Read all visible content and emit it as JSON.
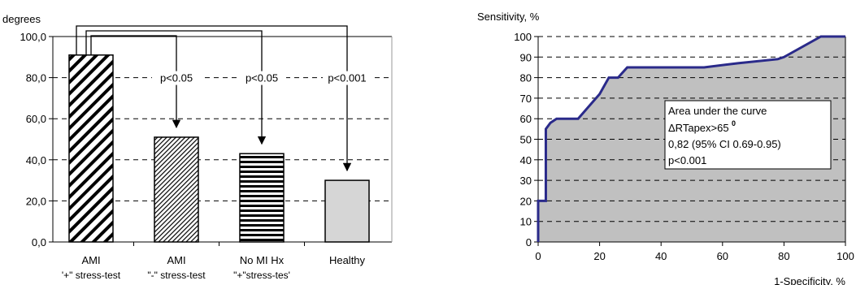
{
  "chart_data": [
    {
      "type": "bar",
      "ylabel": "degrees",
      "ylim": [
        0,
        100
      ],
      "yticks": [
        "0,0",
        "20,0",
        "40,0",
        "60,0",
        "80,0",
        "100,0"
      ],
      "yticks_values": [
        0,
        20,
        40,
        60,
        80,
        100
      ],
      "categories": [
        {
          "line1": "AMI",
          "line2": "'+\" stress-test"
        },
        {
          "line1": "AMI",
          "line2": "\"-\" stress-test"
        },
        {
          "line1": "No MI Hx",
          "line2": "\"+\"stress-tes'"
        },
        {
          "line1": "Healthy",
          "line2": ""
        }
      ],
      "values": [
        91,
        51,
        43,
        30
      ],
      "patterns": [
        "wide-diagonal",
        "fine-diagonal",
        "horizontal",
        "solid-gray"
      ],
      "annotations": [
        "p<0.05",
        "p<0.05",
        "p<0.001"
      ],
      "grid": "dashed horizontal"
    },
    {
      "type": "area",
      "ylabel": "Sensitivity, %",
      "xlabel": "1-Specificity, %",
      "xlim": [
        0,
        100
      ],
      "ylim": [
        0,
        100
      ],
      "xticks": [
        "0",
        "20",
        "40",
        "60",
        "80",
        "100"
      ],
      "yticks": [
        "0",
        "10",
        "20",
        "30",
        "40",
        "50",
        "60",
        "70",
        "80",
        "90",
        "100"
      ],
      "points": [
        [
          0,
          0
        ],
        [
          0,
          20
        ],
        [
          2.5,
          20
        ],
        [
          2.5,
          55
        ],
        [
          4,
          58
        ],
        [
          6,
          60
        ],
        [
          13,
          60
        ],
        [
          20,
          72
        ],
        [
          23,
          80
        ],
        [
          26,
          80
        ],
        [
          29,
          85
        ],
        [
          54,
          85
        ],
        [
          65,
          87
        ],
        [
          78,
          89
        ],
        [
          80,
          90
        ],
        [
          92,
          100
        ],
        [
          100,
          100
        ]
      ],
      "box": {
        "line1": "Area under the curve",
        "line2": "ΔRTapex>65",
        "line2_sup": "0",
        "line3": "0,82 (95% CI 0.69-0.95)",
        "line4": "p<0.001"
      },
      "colors": {
        "fill": "#c0c0c0",
        "line": "#2a2a8a"
      },
      "grid": "dashed horizontal"
    }
  ]
}
